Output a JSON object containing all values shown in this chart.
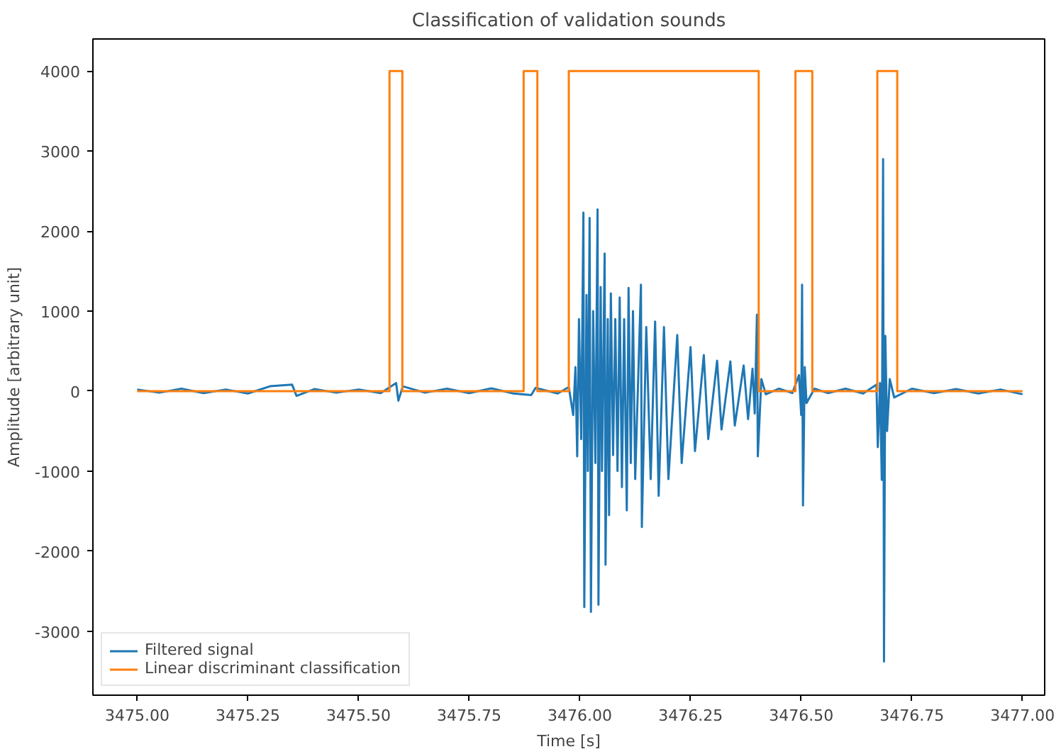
{
  "chart_data": {
    "type": "line",
    "title": "Classification of validation sounds",
    "xlabel": "Time [s]",
    "ylabel": "Amplitude [arbitrary unit]",
    "xlim": [
      3474.9,
      3477.05
    ],
    "ylim": [
      -3800,
      4400
    ],
    "xticks": [
      {
        "value": 3475,
        "label": "3475.00"
      },
      {
        "value": 3475.25,
        "label": "3475.25"
      },
      {
        "value": 3475.5,
        "label": "3475.50"
      },
      {
        "value": 3475.75,
        "label": "3475.75"
      },
      {
        "value": 3476,
        "label": "3476.00"
      },
      {
        "value": 3476.25,
        "label": "3476.25"
      },
      {
        "value": 3476.5,
        "label": "3476.50"
      },
      {
        "value": 3476.75,
        "label": "3476.75"
      },
      {
        "value": 3477,
        "label": "3477.00"
      }
    ],
    "yticks": [
      -3000,
      -2000,
      -1000,
      0,
      1000,
      2000,
      3000,
      4000
    ],
    "grid": false,
    "legend": "bottom left",
    "marker": "none",
    "line_style": "solid",
    "series": [
      {
        "name": "Filtered signal",
        "color": "#1f77b4",
        "x": [
          3475.0,
          3475.05,
          3475.1,
          3475.15,
          3475.2,
          3475.25,
          3475.3,
          3475.35,
          3475.36,
          3475.4,
          3475.45,
          3475.5,
          3475.55,
          3475.585,
          3475.59,
          3475.6,
          3475.65,
          3475.7,
          3475.75,
          3475.8,
          3475.85,
          3475.89,
          3475.9,
          3475.95,
          3475.975,
          3475.985,
          3475.99,
          3475.994,
          3475.998,
          3476.003,
          3476.008,
          3476.01,
          3476.015,
          3476.018,
          3476.022,
          3476.025,
          3476.03,
          3476.035,
          3476.04,
          3476.042,
          3476.047,
          3476.05,
          3476.056,
          3476.058,
          3476.063,
          3476.066,
          3476.07,
          3476.075,
          3476.08,
          3476.085,
          3476.09,
          3476.095,
          3476.1,
          3476.106,
          3476.11,
          3476.115,
          3476.12,
          3476.125,
          3476.138,
          3476.14,
          3476.15,
          3476.16,
          3476.17,
          3476.178,
          3476.19,
          3476.2,
          3476.22,
          3476.23,
          3476.25,
          3476.26,
          3476.28,
          3476.29,
          3476.31,
          3476.32,
          3476.34,
          3476.35,
          3476.37,
          3476.38,
          3476.39,
          3476.395,
          3476.4,
          3476.402,
          3476.41,
          3476.42,
          3476.45,
          3476.48,
          3476.495,
          3476.5,
          3476.502,
          3476.504,
          3476.508,
          3476.512,
          3476.53,
          3476.56,
          3476.6,
          3476.64,
          3476.67,
          3476.673,
          3476.678,
          3476.682,
          3476.685,
          3476.687,
          3476.69,
          3476.694,
          3476.7,
          3476.71,
          3476.75,
          3476.8,
          3476.85,
          3476.9,
          3476.95,
          3477.0
        ],
        "values": [
          20,
          -20,
          30,
          -25,
          20,
          -30,
          60,
          80,
          -60,
          25,
          -20,
          20,
          -25,
          100,
          -120,
          60,
          -20,
          30,
          -25,
          35,
          -30,
          -50,
          40,
          -30,
          50,
          -300,
          300,
          -815,
          900,
          -600,
          2230,
          -2700,
          1200,
          -1000,
          2165,
          -2760,
          1000,
          -900,
          2270,
          -2670,
          1300,
          -1000,
          1720,
          -2170,
          900,
          -1550,
          1220,
          -800,
          900,
          -1000,
          1170,
          -1200,
          900,
          -1490,
          1290,
          -900,
          1000,
          -1100,
          1330,
          -1700,
          800,
          -1100,
          870,
          -1310,
          800,
          -1100,
          700,
          -900,
          550,
          -750,
          450,
          -600,
          380,
          -480,
          370,
          -430,
          320,
          -350,
          280,
          -280,
          955,
          -815,
          150,
          -40,
          30,
          -25,
          200,
          -300,
          1330,
          -1430,
          300,
          -150,
          30,
          -25,
          30,
          -30,
          80,
          -700,
          100,
          -1110,
          2900,
          -3380,
          690,
          -500,
          150,
          -80,
          30,
          -25,
          25,
          -30,
          20,
          -40
        ]
      },
      {
        "name": "Linear discriminant classification",
        "color": "#ff7f0e",
        "x": [
          3475.0,
          3475.57,
          3475.57,
          3475.599,
          3475.599,
          3475.873,
          3475.873,
          3475.904,
          3475.904,
          3475.975,
          3475.975,
          3476.404,
          3476.404,
          3476.487,
          3476.487,
          3476.525,
          3476.525,
          3476.672,
          3476.672,
          3476.717,
          3476.717,
          3477.0
        ],
        "values": [
          0,
          0,
          4000,
          4000,
          0,
          0,
          4000,
          4000,
          0,
          0,
          4000,
          4000,
          0,
          0,
          4000,
          4000,
          0,
          0,
          4000,
          4000,
          0,
          0
        ]
      }
    ]
  }
}
